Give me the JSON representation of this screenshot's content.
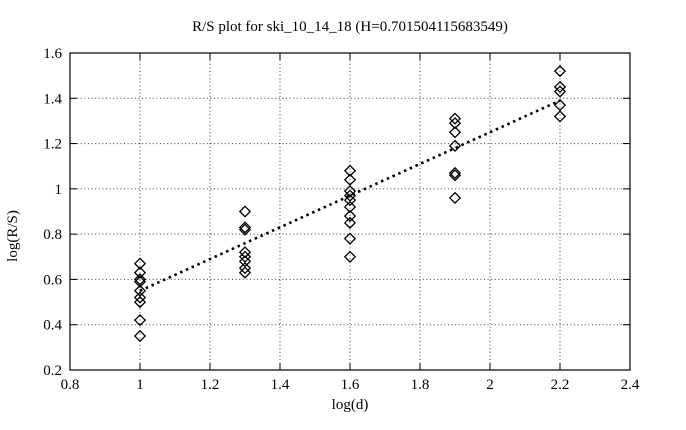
{
  "chart_data": {
    "type": "scatter",
    "title": "R/S plot for ski_10_14_18 (H=0.701504115683549)",
    "xlabel": "log(d)",
    "ylabel": "log(R/S)",
    "hurst_exponent": "0.701504115683549",
    "xlim": [
      0.8,
      2.4
    ],
    "ylim": [
      0.2,
      1.6
    ],
    "xticks": [
      "0.8",
      "1",
      "1.2",
      "1.4",
      "1.6",
      "1.8",
      "2",
      "2.2",
      "2.4"
    ],
    "yticks": [
      "0.2",
      "0.4",
      "0.6",
      "0.8",
      "1",
      "1.2",
      "1.4",
      "1.6"
    ],
    "grid": true,
    "grid_style": "dotted",
    "legend": "none",
    "marker": "open-diamond",
    "frame_color": "#000000",
    "marker_color": "#000000",
    "line_color": "#000000",
    "background_color": "#ffffff",
    "series": [
      {
        "name": "rs-points",
        "type": "scatter",
        "points": [
          [
            1.0,
            0.67
          ],
          [
            1.0,
            0.63
          ],
          [
            1.0,
            0.6
          ],
          [
            1.0,
            0.59
          ],
          [
            1.0,
            0.55
          ],
          [
            1.0,
            0.52
          ],
          [
            1.0,
            0.5
          ],
          [
            1.0,
            0.42
          ],
          [
            1.0,
            0.35
          ],
          [
            1.3,
            0.9
          ],
          [
            1.3,
            0.83
          ],
          [
            1.3,
            0.82
          ],
          [
            1.3,
            0.72
          ],
          [
            1.3,
            0.7
          ],
          [
            1.3,
            0.68
          ],
          [
            1.3,
            0.65
          ],
          [
            1.3,
            0.63
          ],
          [
            1.6,
            1.08
          ],
          [
            1.6,
            1.04
          ],
          [
            1.6,
            0.99
          ],
          [
            1.6,
            0.97
          ],
          [
            1.6,
            0.95
          ],
          [
            1.6,
            0.92
          ],
          [
            1.6,
            0.88
          ],
          [
            1.6,
            0.85
          ],
          [
            1.6,
            0.78
          ],
          [
            1.6,
            0.7
          ],
          [
            1.9,
            1.31
          ],
          [
            1.9,
            1.29
          ],
          [
            1.9,
            1.25
          ],
          [
            1.9,
            1.19
          ],
          [
            1.9,
            1.07
          ],
          [
            1.9,
            1.06
          ],
          [
            1.9,
            0.96
          ],
          [
            2.2,
            1.52
          ],
          [
            2.2,
            1.45
          ],
          [
            2.2,
            1.43
          ],
          [
            2.2,
            1.37
          ],
          [
            2.2,
            1.32
          ]
        ]
      },
      {
        "name": "hurst-fit-line",
        "type": "line",
        "style": "dotted",
        "x": [
          1.0,
          2.2
        ],
        "y": [
          0.55,
          1.39
        ]
      }
    ]
  }
}
